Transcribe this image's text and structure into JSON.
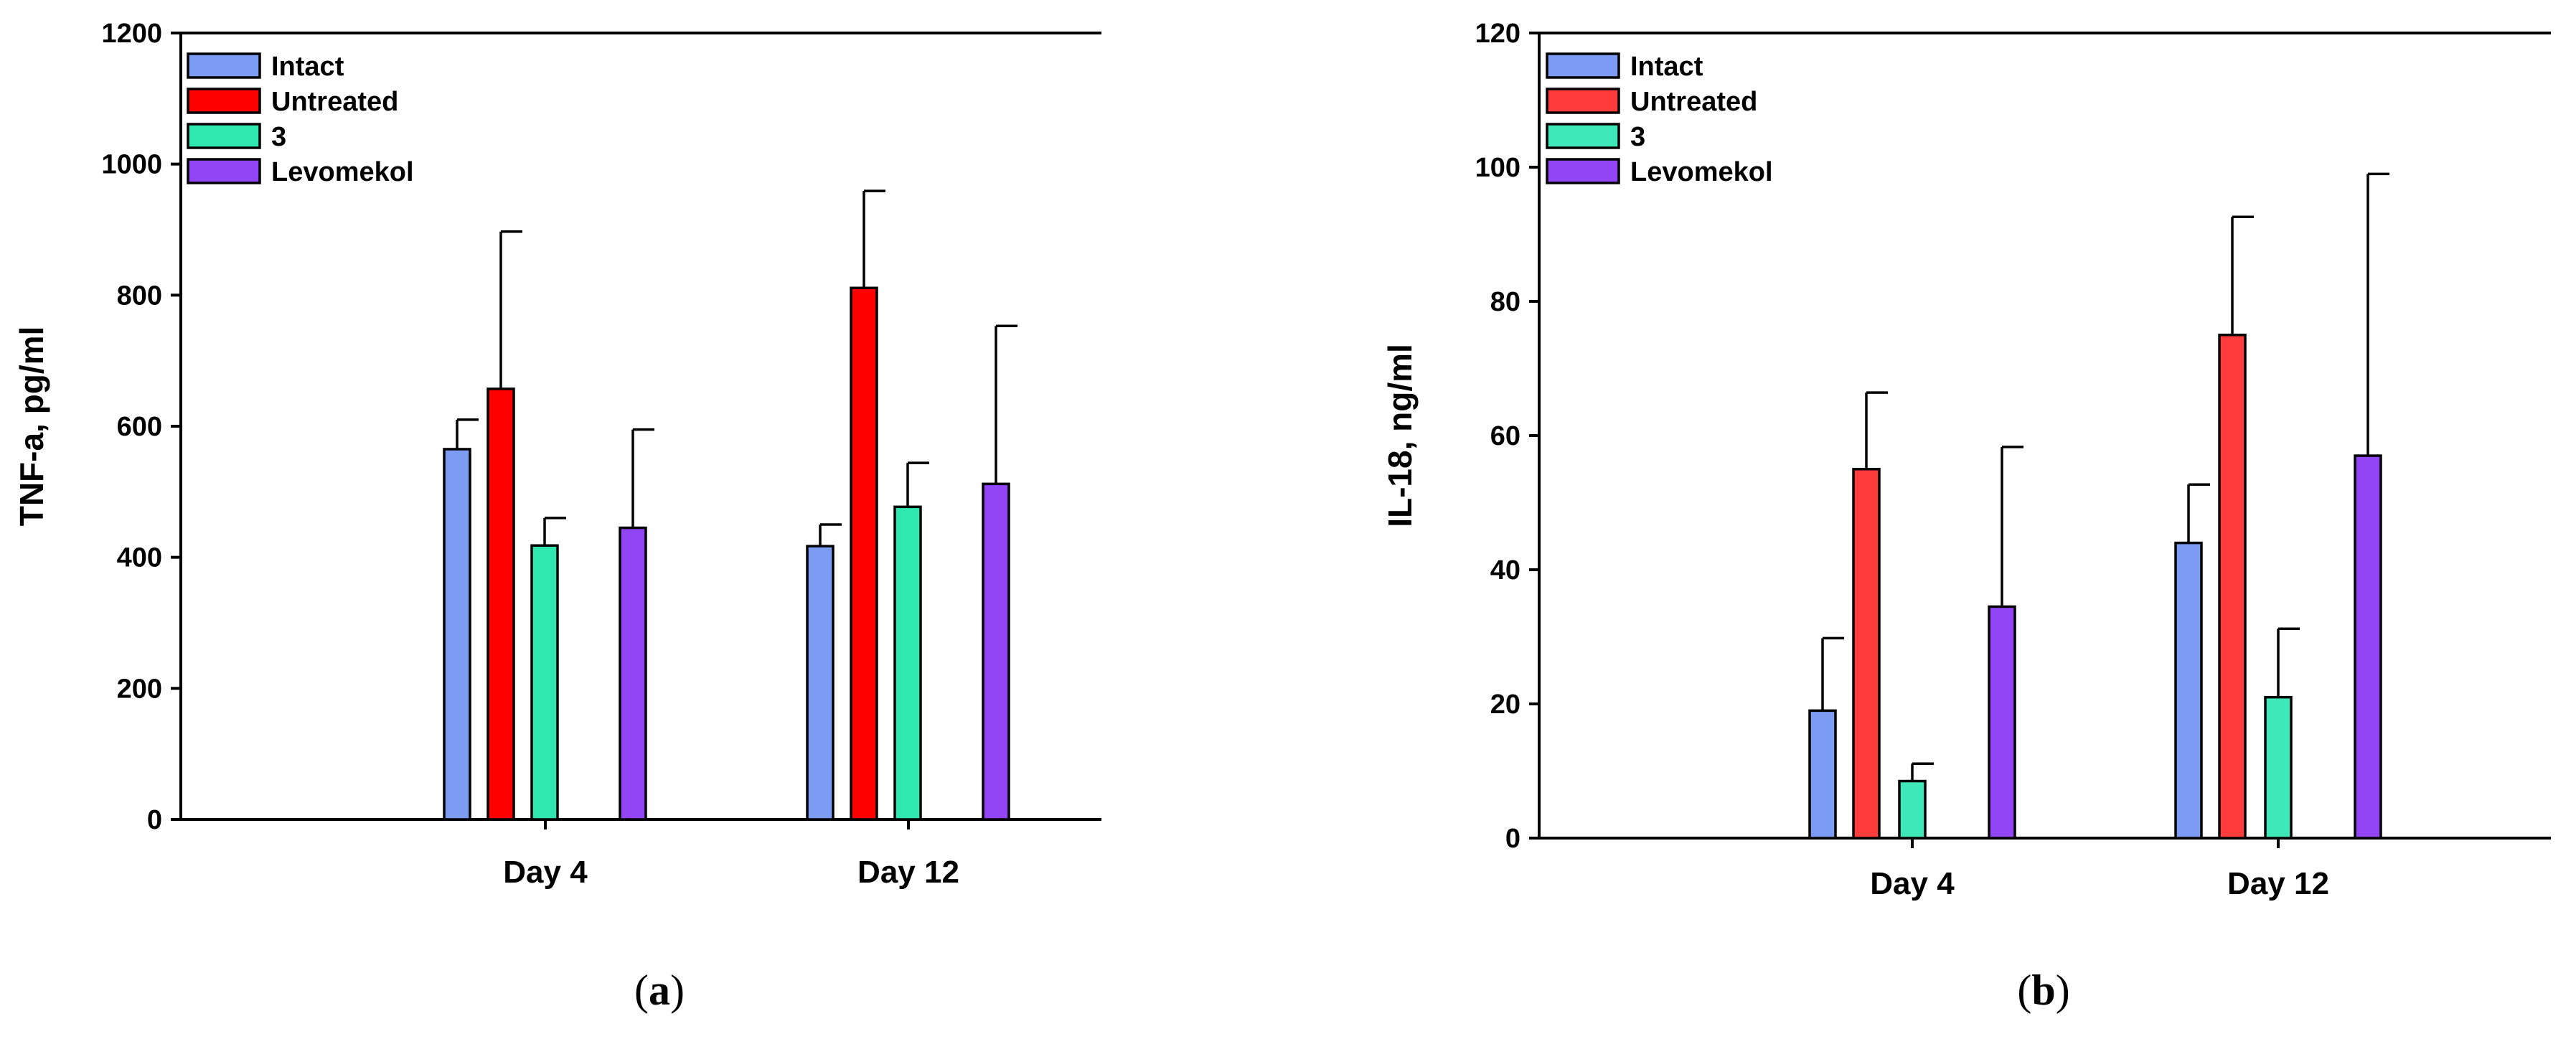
{
  "chart_data": [
    {
      "type": "bar",
      "panel_label": "a",
      "ylabel": "TNF-a, pg/ml",
      "xlabel": "",
      "ylim": [
        0,
        1200
      ],
      "yticks": [
        0,
        200,
        400,
        600,
        800,
        1000,
        1200
      ],
      "categories": [
        "Day 4",
        "Day 12"
      ],
      "error_bars": "upper",
      "legend_position": "top-left",
      "series": [
        {
          "name": "Intact",
          "color": "#7b9cf2",
          "values": [
            565,
            417
          ],
          "errors": [
            45,
            33
          ]
        },
        {
          "name": "Untreated",
          "color": "#ff0000",
          "values": [
            657,
            811
          ],
          "errors": [
            240,
            148
          ]
        },
        {
          "name": "3",
          "color": "#2ee8b0",
          "values": [
            418,
            477
          ],
          "errors": [
            42,
            67
          ]
        },
        {
          "name": "Levomekol",
          "color": "#9145f5",
          "values": [
            445,
            512
          ],
          "errors": [
            150,
            241
          ]
        }
      ]
    },
    {
      "type": "bar",
      "panel_label": "b",
      "ylabel": "IL-18, ng/ml",
      "xlabel": "",
      "ylim": [
        0,
        120
      ],
      "yticks": [
        0,
        20,
        40,
        60,
        80,
        100,
        120
      ],
      "categories": [
        "Day 4",
        "Day 12"
      ],
      "error_bars": "upper",
      "legend_position": "top-left",
      "series": [
        {
          "name": "Intact",
          "color": "#7b9cf2",
          "values": [
            19,
            44
          ],
          "errors": [
            10.8,
            8.7
          ]
        },
        {
          "name": "Untreated",
          "color": "#ff3b3b",
          "values": [
            55,
            75
          ],
          "errors": [
            11.4,
            17.6
          ]
        },
        {
          "name": "3",
          "color": "#3fe8b8",
          "values": [
            8.5,
            21
          ],
          "errors": [
            2.6,
            10.2
          ]
        },
        {
          "name": "Levomekol",
          "color": "#9145f5",
          "values": [
            34.5,
            57
          ],
          "errors": [
            23.8,
            42
          ]
        }
      ]
    }
  ]
}
